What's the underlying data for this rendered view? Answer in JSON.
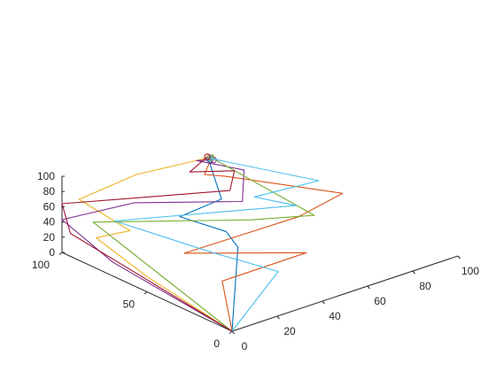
{
  "chart_data": {
    "type": "line3d",
    "title": "",
    "xlabel": "",
    "ylabel": "",
    "zlabel": "",
    "xlim": [
      0,
      100
    ],
    "ylim": [
      0,
      100
    ],
    "zlim": [
      0,
      100
    ],
    "x_ticks": [
      "0",
      "20",
      "40",
      "60",
      "80",
      "100"
    ],
    "y_ticks": [
      "0",
      "50",
      "100"
    ],
    "z_ticks": [
      "0",
      "20",
      "40",
      "60",
      "80",
      "100"
    ],
    "grid": false,
    "legend": "none",
    "endpoint_marker": "circle",
    "colors": [
      "#0072BD",
      "#D95319",
      "#EDB120",
      "#7E2F8E",
      "#77AC30",
      "#4DBEEE",
      "#A2142F"
    ],
    "series": [
      {
        "color": "#0072BD",
        "points": [
          [
            0,
            0,
            0
          ],
          [
            44,
            55,
            10
          ],
          [
            20,
            30,
            80
          ],
          [
            10,
            44,
            95
          ],
          [
            36,
            54,
            82
          ],
          [
            45,
            74,
            107
          ],
          [
            43,
            70,
            110
          ]
        ]
      },
      {
        "color": "#D95319",
        "points": [
          [
            0,
            0,
            0
          ],
          [
            22,
            35,
            8
          ],
          [
            48,
            20,
            35
          ],
          [
            12,
            44,
            45
          ],
          [
            49,
            26,
            75
          ],
          [
            67,
            24,
            90
          ],
          [
            42,
            60,
            100
          ],
          [
            36,
            64,
            104
          ],
          [
            45,
            72,
            108
          ]
        ]
      },
      {
        "color": "#EDB120",
        "points": [
          [
            0,
            0,
            0
          ],
          [
            0,
            50,
            20
          ],
          [
            0,
            80,
            40
          ],
          [
            0,
            60,
            70
          ],
          [
            0,
            90,
            80
          ],
          [
            20,
            83,
            100
          ],
          [
            44,
            72,
            110
          ]
        ]
      },
      {
        "color": "#7E2F8E",
        "points": [
          [
            0,
            0,
            0
          ],
          [
            0,
            70,
            18
          ],
          [
            0,
            100,
            43
          ],
          [
            20,
            84,
            62
          ],
          [
            46,
            55,
            68
          ],
          [
            58,
            70,
            82
          ],
          [
            40,
            74,
            108
          ],
          [
            43,
            68,
            112
          ]
        ]
      },
      {
        "color": "#77AC30",
        "points": [
          [
            0,
            0,
            0
          ],
          [
            10,
            95,
            35
          ],
          [
            50,
            55,
            40
          ],
          [
            56,
            26,
            70
          ],
          [
            45,
            72,
            109
          ]
        ]
      },
      {
        "color": "#4DBEEE",
        "points": [
          [
            0,
            0,
            0
          ],
          [
            40,
            26,
            12
          ],
          [
            26,
            46,
            30
          ],
          [
            9,
            81,
            52
          ],
          [
            66,
            50,
            48
          ],
          [
            55,
            60,
            60
          ],
          [
            70,
            42,
            85
          ],
          [
            43,
            70,
            112
          ]
        ]
      },
      {
        "color": "#A2142F",
        "points": [
          [
            0,
            0,
            0
          ],
          [
            0,
            95,
            30
          ],
          [
            0,
            100,
            64
          ],
          [
            48,
            65,
            70
          ],
          [
            50,
            65,
            94
          ],
          [
            34,
            70,
            103
          ],
          [
            44,
            73,
            110
          ]
        ]
      }
    ]
  }
}
